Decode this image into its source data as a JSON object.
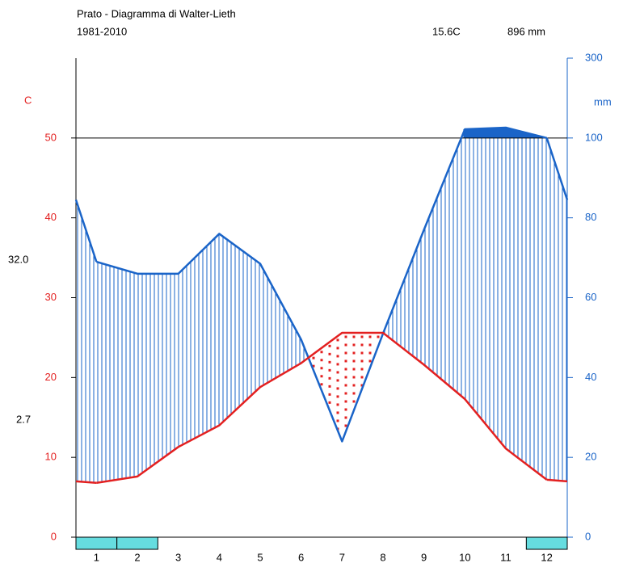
{
  "chart_data": {
    "type": "walter-lieth",
    "title": "Prato - Diagramma di Walter-Lieth",
    "subtitle": "1981-2010",
    "mean_temperature": "15.6C",
    "total_precipitation": "896 mm",
    "ylabel": "C",
    "y2label": "mm",
    "annotations": [
      "32.0",
      "2.7"
    ],
    "categories": [
      "1",
      "2",
      "3",
      "4",
      "5",
      "6",
      "7",
      "8",
      "9",
      "10",
      "11",
      "12"
    ],
    "series": [
      {
        "name": "Temperature",
        "color": "#e32020",
        "values": [
          6.8,
          7.6,
          11.3,
          14.0,
          18.8,
          21.8,
          25.6,
          25.6,
          21.6,
          17.3,
          11.1,
          7.2
        ]
      },
      {
        "name": "Precipitation",
        "color": "#1a64c8",
        "axis": "y2",
        "values": [
          69,
          66,
          66,
          76,
          68.5,
          49.5,
          24,
          51,
          77,
          122,
          126,
          100
        ]
      }
    ],
    "ylim": [
      0,
      60
    ],
    "yticks": [
      0,
      10,
      20,
      30,
      40,
      50
    ],
    "y2lim": [
      0,
      300
    ],
    "y2ticks": [
      0,
      20,
      40,
      60,
      80,
      100,
      300
    ],
    "scale_break": 100,
    "frost_months": [
      1,
      2,
      12
    ],
    "frost_color": "#66dde0"
  }
}
